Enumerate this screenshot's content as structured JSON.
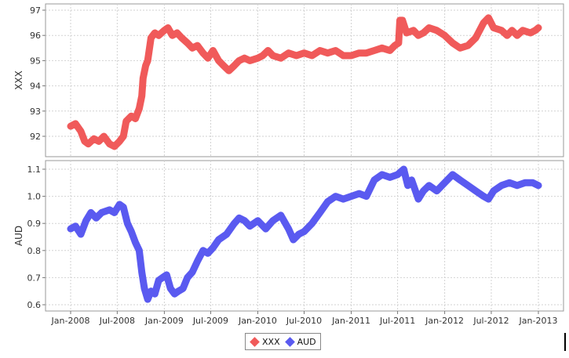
{
  "chart_data": [
    {
      "type": "line",
      "panel": "top",
      "ylabel": "XXX",
      "ylim": [
        91.4,
        97.0
      ],
      "yticks": [
        92,
        93,
        94,
        95,
        96,
        97
      ],
      "grid": true,
      "series": [
        {
          "name": "XXX",
          "color": "#f05a5a",
          "points": [
            [
              "2008-01-01",
              92.4
            ],
            [
              "2008-01-20",
              92.5
            ],
            [
              "2008-02-10",
              92.2
            ],
            [
              "2008-02-25",
              91.8
            ],
            [
              "2008-03-10",
              91.7
            ],
            [
              "2008-04-01",
              91.9
            ],
            [
              "2008-04-20",
              91.8
            ],
            [
              "2008-05-10",
              92.0
            ],
            [
              "2008-06-01",
              91.7
            ],
            [
              "2008-06-20",
              91.6
            ],
            [
              "2008-07-10",
              91.8
            ],
            [
              "2008-07-25",
              92.0
            ],
            [
              "2008-08-05",
              92.6
            ],
            [
              "2008-08-25",
              92.8
            ],
            [
              "2008-09-10",
              92.7
            ],
            [
              "2008-09-25",
              93.1
            ],
            [
              "2008-10-05",
              93.6
            ],
            [
              "2008-10-10",
              94.3
            ],
            [
              "2008-10-20",
              94.8
            ],
            [
              "2008-10-28",
              95.0
            ],
            [
              "2008-11-10",
              95.9
            ],
            [
              "2008-11-25",
              96.1
            ],
            [
              "2008-12-10",
              96.0
            ],
            [
              "2009-01-01",
              96.2
            ],
            [
              "2009-01-15",
              96.3
            ],
            [
              "2009-02-01",
              96.0
            ],
            [
              "2009-02-20",
              96.1
            ],
            [
              "2009-03-10",
              95.9
            ],
            [
              "2009-04-01",
              95.7
            ],
            [
              "2009-04-20",
              95.5
            ],
            [
              "2009-05-10",
              95.6
            ],
            [
              "2009-06-01",
              95.3
            ],
            [
              "2009-06-20",
              95.1
            ],
            [
              "2009-07-10",
              95.4
            ],
            [
              "2009-08-01",
              95.0
            ],
            [
              "2009-08-20",
              94.8
            ],
            [
              "2009-09-10",
              94.6
            ],
            [
              "2009-10-01",
              94.8
            ],
            [
              "2009-10-20",
              95.0
            ],
            [
              "2009-11-10",
              95.1
            ],
            [
              "2009-12-01",
              95.0
            ],
            [
              "2010-01-01",
              95.1
            ],
            [
              "2010-01-20",
              95.2
            ],
            [
              "2010-02-10",
              95.4
            ],
            [
              "2010-03-01",
              95.2
            ],
            [
              "2010-04-01",
              95.1
            ],
            [
              "2010-05-01",
              95.3
            ],
            [
              "2010-06-01",
              95.2
            ],
            [
              "2010-07-01",
              95.3
            ],
            [
              "2010-08-01",
              95.2
            ],
            [
              "2010-09-01",
              95.4
            ],
            [
              "2010-10-01",
              95.3
            ],
            [
              "2010-11-01",
              95.4
            ],
            [
              "2010-12-01",
              95.2
            ],
            [
              "2011-01-01",
              95.2
            ],
            [
              "2011-02-01",
              95.3
            ],
            [
              "2011-03-01",
              95.3
            ],
            [
              "2011-04-01",
              95.4
            ],
            [
              "2011-05-01",
              95.5
            ],
            [
              "2011-06-01",
              95.4
            ],
            [
              "2011-06-20",
              95.6
            ],
            [
              "2011-07-05",
              95.7
            ],
            [
              "2011-07-10",
              96.6
            ],
            [
              "2011-07-20",
              96.6
            ],
            [
              "2011-08-05",
              96.1
            ],
            [
              "2011-09-01",
              96.2
            ],
            [
              "2011-09-20",
              96.0
            ],
            [
              "2011-10-10",
              96.1
            ],
            [
              "2011-11-01",
              96.3
            ],
            [
              "2011-12-01",
              96.2
            ],
            [
              "2012-01-01",
              96.0
            ],
            [
              "2012-02-01",
              95.7
            ],
            [
              "2012-03-01",
              95.5
            ],
            [
              "2012-04-01",
              95.6
            ],
            [
              "2012-05-01",
              95.9
            ],
            [
              "2012-06-01",
              96.5
            ],
            [
              "2012-06-20",
              96.7
            ],
            [
              "2012-07-10",
              96.3
            ],
            [
              "2012-08-10",
              96.2
            ],
            [
              "2012-09-01",
              96.0
            ],
            [
              "2012-09-20",
              96.2
            ],
            [
              "2012-10-10",
              96.0
            ],
            [
              "2012-11-01",
              96.2
            ],
            [
              "2012-12-01",
              96.1
            ],
            [
              "2012-12-20",
              96.2
            ],
            [
              "2013-01-01",
              96.3
            ]
          ]
        }
      ]
    },
    {
      "type": "line",
      "panel": "bottom",
      "ylabel": "AUD",
      "ylim": [
        0.585,
        1.115
      ],
      "yticks": [
        0.6,
        0.7,
        0.8,
        0.9,
        1.0,
        1.1
      ],
      "xticks": [
        "Jan-2008",
        "Jul-2008",
        "Jan-2009",
        "Jul-2009",
        "Jan-2010",
        "Jul-2010",
        "Jan-2011",
        "Jul-2011",
        "Jan-2012",
        "Jul-2012",
        "Jan-2013"
      ],
      "grid": true,
      "series": [
        {
          "name": "AUD",
          "color": "#5a5af0",
          "points": [
            [
              "2008-01-01",
              0.88
            ],
            [
              "2008-01-20",
              0.89
            ],
            [
              "2008-02-10",
              0.86
            ],
            [
              "2008-03-01",
              0.91
            ],
            [
              "2008-03-20",
              0.94
            ],
            [
              "2008-04-10",
              0.92
            ],
            [
              "2008-05-01",
              0.94
            ],
            [
              "2008-06-01",
              0.95
            ],
            [
              "2008-06-20",
              0.94
            ],
            [
              "2008-07-10",
              0.97
            ],
            [
              "2008-07-25",
              0.96
            ],
            [
              "2008-08-10",
              0.9
            ],
            [
              "2008-08-25",
              0.87
            ],
            [
              "2008-09-10",
              0.83
            ],
            [
              "2008-09-25",
              0.8
            ],
            [
              "2008-10-05",
              0.72
            ],
            [
              "2008-10-15",
              0.66
            ],
            [
              "2008-10-28",
              0.62
            ],
            [
              "2008-11-10",
              0.65
            ],
            [
              "2008-11-25",
              0.64
            ],
            [
              "2008-12-10",
              0.69
            ],
            [
              "2008-12-25",
              0.7
            ],
            [
              "2009-01-10",
              0.71
            ],
            [
              "2009-01-25",
              0.66
            ],
            [
              "2009-02-10",
              0.64
            ],
            [
              "2009-02-25",
              0.65
            ],
            [
              "2009-03-15",
              0.66
            ],
            [
              "2009-04-01",
              0.7
            ],
            [
              "2009-04-20",
              0.72
            ],
            [
              "2009-05-10",
              0.76
            ],
            [
              "2009-06-01",
              0.8
            ],
            [
              "2009-06-20",
              0.79
            ],
            [
              "2009-07-10",
              0.81
            ],
            [
              "2009-08-01",
              0.84
            ],
            [
              "2009-09-01",
              0.86
            ],
            [
              "2009-10-01",
              0.9
            ],
            [
              "2009-10-20",
              0.92
            ],
            [
              "2009-11-10",
              0.91
            ],
            [
              "2009-12-01",
              0.89
            ],
            [
              "2010-01-01",
              0.91
            ],
            [
              "2010-02-01",
              0.88
            ],
            [
              "2010-03-01",
              0.91
            ],
            [
              "2010-04-01",
              0.93
            ],
            [
              "2010-05-01",
              0.88
            ],
            [
              "2010-05-20",
              0.84
            ],
            [
              "2010-06-10",
              0.86
            ],
            [
              "2010-07-01",
              0.87
            ],
            [
              "2010-08-01",
              0.9
            ],
            [
              "2010-09-01",
              0.94
            ],
            [
              "2010-10-01",
              0.98
            ],
            [
              "2010-11-01",
              1.0
            ],
            [
              "2010-12-01",
              0.99
            ],
            [
              "2011-01-01",
              1.0
            ],
            [
              "2011-02-01",
              1.01
            ],
            [
              "2011-03-01",
              1.0
            ],
            [
              "2011-04-01",
              1.06
            ],
            [
              "2011-05-01",
              1.08
            ],
            [
              "2011-06-01",
              1.07
            ],
            [
              "2011-07-01",
              1.08
            ],
            [
              "2011-07-25",
              1.1
            ],
            [
              "2011-08-10",
              1.04
            ],
            [
              "2011-08-25",
              1.06
            ],
            [
              "2011-09-20",
              0.99
            ],
            [
              "2011-10-10",
              1.02
            ],
            [
              "2011-11-01",
              1.04
            ],
            [
              "2011-12-01",
              1.02
            ],
            [
              "2012-01-01",
              1.05
            ],
            [
              "2012-02-01",
              1.08
            ],
            [
              "2012-03-01",
              1.06
            ],
            [
              "2012-04-01",
              1.04
            ],
            [
              "2012-05-01",
              1.02
            ],
            [
              "2012-06-01",
              1.0
            ],
            [
              "2012-06-20",
              0.99
            ],
            [
              "2012-07-10",
              1.02
            ],
            [
              "2012-08-10",
              1.04
            ],
            [
              "2012-09-10",
              1.05
            ],
            [
              "2012-10-10",
              1.04
            ],
            [
              "2012-11-10",
              1.05
            ],
            [
              "2012-12-10",
              1.05
            ],
            [
              "2013-01-01",
              1.04
            ]
          ]
        }
      ]
    }
  ],
  "legend": {
    "items": [
      {
        "label": "XXX",
        "color": "#f05a5a"
      },
      {
        "label": "AUD",
        "color": "#5a5af0"
      }
    ]
  }
}
